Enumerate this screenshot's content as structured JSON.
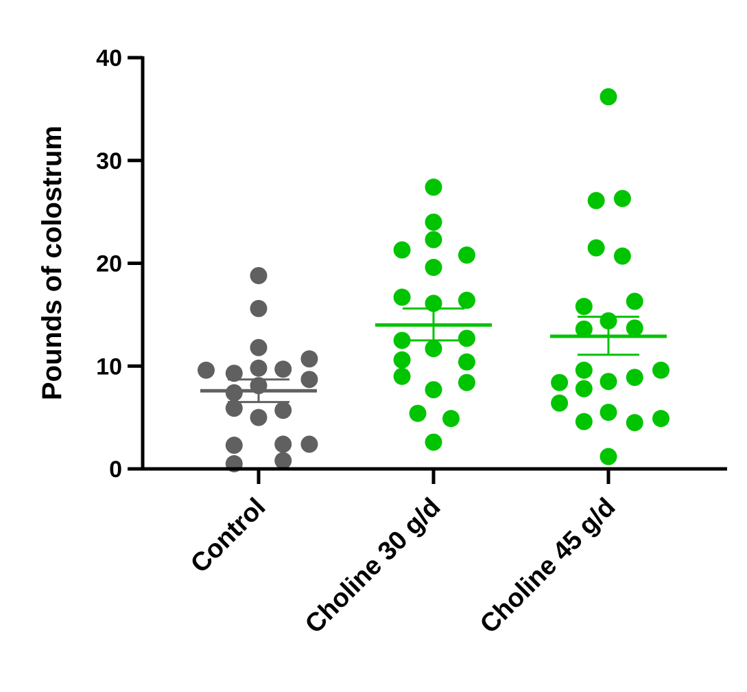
{
  "chart_data": {
    "type": "scatter",
    "ylabel": "Pounds of colostrum",
    "ylim": [
      0,
      40
    ],
    "yticks": [
      0,
      10,
      20,
      30,
      40
    ],
    "categories": [
      "Control",
      "Choline 30 g/d",
      "Choline 45 g/d"
    ],
    "series": [
      {
        "category": "Control",
        "color": "#606060",
        "mean": 7.6,
        "sem": [
          6.5,
          8.7
        ],
        "points": [
          {
            "x": -0.3,
            "y": 9.6
          },
          {
            "x": -0.14,
            "y": 9.3
          },
          {
            "x": 0.0,
            "y": 18.8
          },
          {
            "x": 0.0,
            "y": 15.6
          },
          {
            "x": 0.0,
            "y": 11.8
          },
          {
            "x": 0.0,
            "y": 9.8
          },
          {
            "x": 0.14,
            "y": 9.7
          },
          {
            "x": 0.29,
            "y": 10.7
          },
          {
            "x": 0.29,
            "y": 8.7
          },
          {
            "x": 0.0,
            "y": 8.1
          },
          {
            "x": -0.14,
            "y": 7.4
          },
          {
            "x": -0.14,
            "y": 5.9
          },
          {
            "x": 0.0,
            "y": 5.0
          },
          {
            "x": 0.14,
            "y": 5.7
          },
          {
            "x": -0.14,
            "y": 2.3
          },
          {
            "x": 0.14,
            "y": 2.4
          },
          {
            "x": 0.29,
            "y": 2.4
          },
          {
            "x": -0.14,
            "y": 0.5
          },
          {
            "x": 0.14,
            "y": 0.8
          }
        ]
      },
      {
        "category": "Choline 30 g/d",
        "color": "#00c400",
        "mean": 14.0,
        "sem": [
          12.5,
          15.6
        ],
        "points": [
          {
            "x": 0.0,
            "y": 27.4
          },
          {
            "x": 0.0,
            "y": 24.0
          },
          {
            "x": 0.0,
            "y": 22.3
          },
          {
            "x": -0.18,
            "y": 21.3
          },
          {
            "x": 0.19,
            "y": 20.8
          },
          {
            "x": 0.0,
            "y": 19.6
          },
          {
            "x": -0.18,
            "y": 16.7
          },
          {
            "x": 0.0,
            "y": 16.1
          },
          {
            "x": 0.19,
            "y": 16.4
          },
          {
            "x": -0.18,
            "y": 12.5
          },
          {
            "x": 0.19,
            "y": 12.7
          },
          {
            "x": 0.0,
            "y": 11.7
          },
          {
            "x": -0.18,
            "y": 10.6
          },
          {
            "x": 0.19,
            "y": 10.4
          },
          {
            "x": -0.18,
            "y": 9.0
          },
          {
            "x": 0.19,
            "y": 8.4
          },
          {
            "x": 0.0,
            "y": 7.7
          },
          {
            "x": -0.09,
            "y": 5.4
          },
          {
            "x": 0.1,
            "y": 4.9
          },
          {
            "x": 0.0,
            "y": 2.6
          }
        ]
      },
      {
        "category": "Choline 45 g/d",
        "color": "#00c400",
        "mean": 12.9,
        "sem": [
          11.1,
          14.8
        ],
        "points": [
          {
            "x": 0.0,
            "y": 36.2
          },
          {
            "x": -0.07,
            "y": 26.1
          },
          {
            "x": 0.08,
            "y": 26.3
          },
          {
            "x": -0.07,
            "y": 21.5
          },
          {
            "x": 0.08,
            "y": 20.7
          },
          {
            "x": -0.14,
            "y": 15.8
          },
          {
            "x": 0.15,
            "y": 16.3
          },
          {
            "x": 0.0,
            "y": 14.4
          },
          {
            "x": -0.14,
            "y": 13.6
          },
          {
            "x": 0.15,
            "y": 13.7
          },
          {
            "x": -0.14,
            "y": 9.6
          },
          {
            "x": 0.3,
            "y": 9.6
          },
          {
            "x": 0.0,
            "y": 8.5
          },
          {
            "x": 0.15,
            "y": 8.9
          },
          {
            "x": -0.28,
            "y": 8.4
          },
          {
            "x": -0.14,
            "y": 7.8
          },
          {
            "x": -0.28,
            "y": 6.4
          },
          {
            "x": -0.14,
            "y": 4.6
          },
          {
            "x": 0.0,
            "y": 5.5
          },
          {
            "x": 0.15,
            "y": 4.5
          },
          {
            "x": 0.3,
            "y": 4.9
          },
          {
            "x": 0.0,
            "y": 1.2
          }
        ]
      }
    ]
  }
}
